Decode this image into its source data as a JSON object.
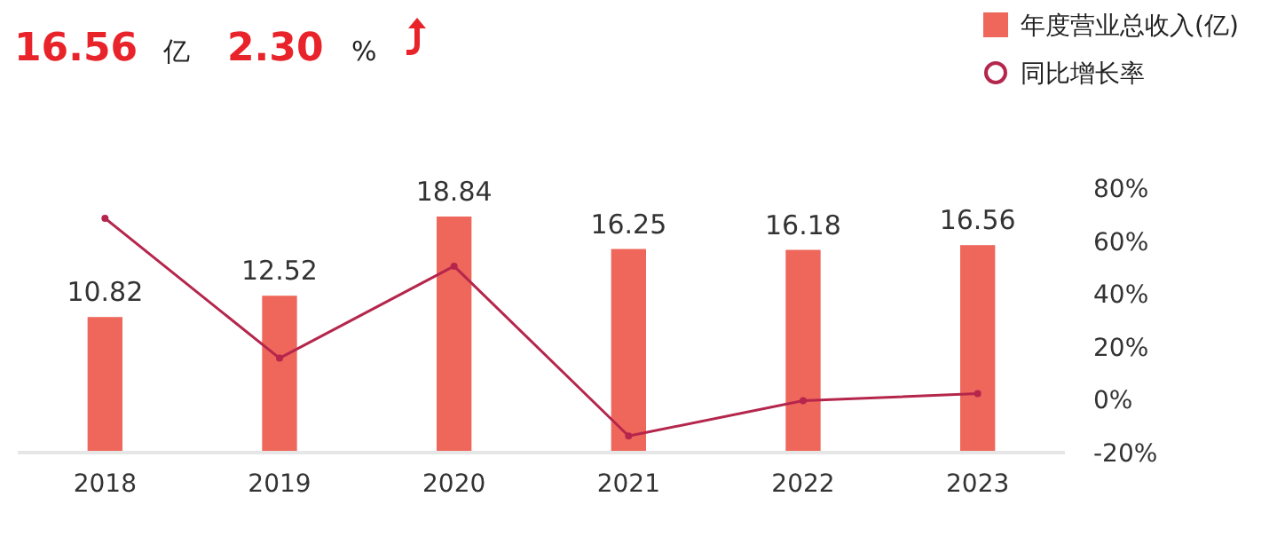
{
  "chart_data": {
    "type": "bar",
    "categories": [
      "2018",
      "2019",
      "2020",
      "2021",
      "2022",
      "2023"
    ],
    "series": [
      {
        "name": "年度营业总收入(亿)",
        "color": "#ef665a",
        "values": [
          10.82,
          12.52,
          18.84,
          16.25,
          16.18,
          16.56
        ],
        "value_labels": [
          "10.82",
          "12.52",
          "18.84",
          "16.25",
          "16.18",
          "16.56"
        ]
      },
      {
        "name": "同比增长率",
        "type": "line",
        "axis": "y2",
        "color": "#b5264c",
        "values": [
          68.6,
          15.7,
          50.5,
          -13.7,
          -0.4,
          2.3
        ]
      }
    ],
    "y2lim": [
      -20,
      80
    ],
    "y2ticks": [
      {
        "value": -20,
        "label": "-20%"
      },
      {
        "value": 0,
        "label": "0%"
      },
      {
        "value": 20,
        "label": "20%"
      },
      {
        "value": 40,
        "label": "40%"
      },
      {
        "value": 60,
        "label": "60%"
      },
      {
        "value": 80,
        "label": "80%"
      }
    ],
    "legend": "top right",
    "marker": "circle",
    "grid": false,
    "annotations": [
      "16.56",
      "亿",
      "2.30",
      "%"
    ]
  }
}
